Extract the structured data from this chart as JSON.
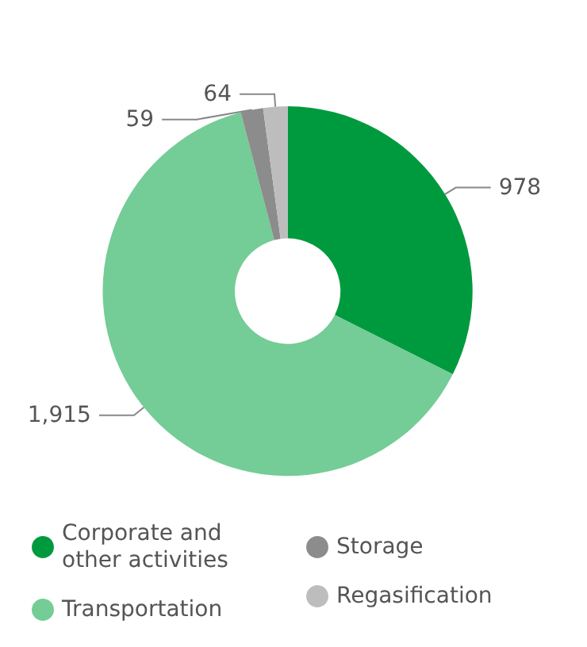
{
  "chart_data": {
    "type": "donut",
    "categories": [
      "Corporate and other activities",
      "Transportation",
      "Storage",
      "Regasification"
    ],
    "values": [
      978,
      1915,
      59,
      64
    ],
    "colors": [
      "#009a3e",
      "#74cc96",
      "#8c8c8c",
      "#bdbdbd"
    ],
    "value_labels": [
      "978",
      "1,915",
      "59",
      "64"
    ],
    "legend": "bottom"
  }
}
